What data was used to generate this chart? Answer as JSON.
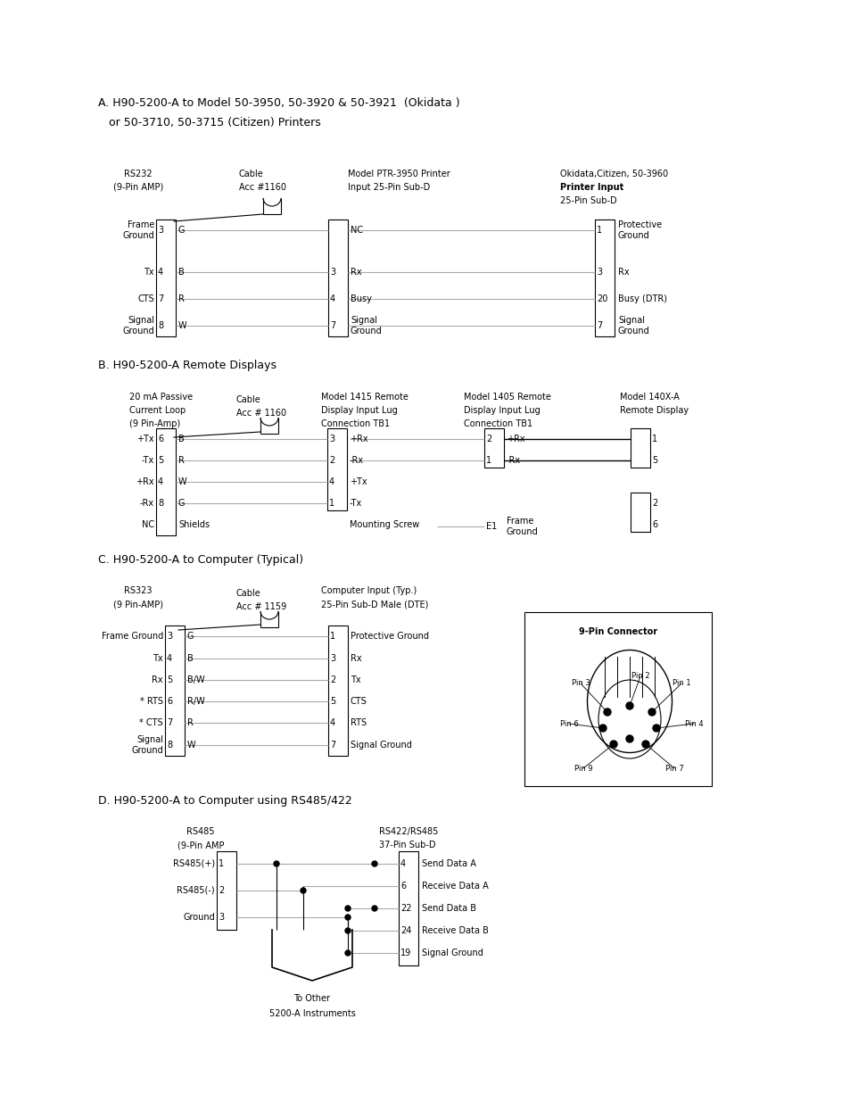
{
  "bg_color": "#ffffff",
  "title_A_line1": "A. H90-5200-A to Model 50-3950, 50-3920 & 50-3921  (Okidata )",
  "title_A_line2": "   or 50-3710, 50-3715 (Citizen) Printers",
  "title_B": "B. H90-5200-A Remote Displays",
  "title_C": "C. H90-5200-A to Computer (Typical)",
  "title_D": "D. H90-5200-A to Computer using RS485/422",
  "fs_small": 7.0,
  "fs_title": 9.0,
  "wire_color": "#aaaaaa",
  "line_color": "#000000"
}
